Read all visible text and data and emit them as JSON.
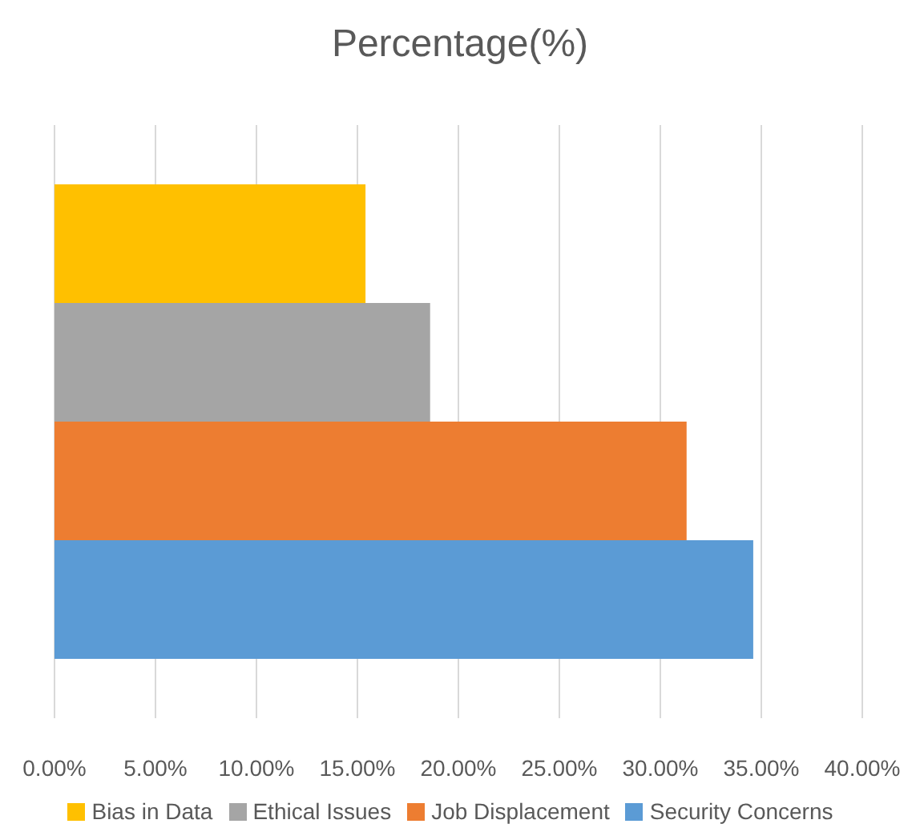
{
  "chart_data": {
    "type": "bar",
    "orientation": "horizontal",
    "title": "Percentage(%)",
    "categories": [
      null
    ],
    "series": [
      {
        "name": "Bias in Data",
        "color": "#ffc000",
        "values": [
          15.4
        ]
      },
      {
        "name": "Ethical Issues",
        "color": "#a5a5a5",
        "values": [
          18.6
        ]
      },
      {
        "name": "Job Displacement",
        "color": "#ed7d31",
        "values": [
          31.3
        ]
      },
      {
        "name": "Security Concerns",
        "color": "#5b9bd5",
        "values": [
          34.6
        ]
      }
    ],
    "xlim": [
      0,
      40
    ],
    "xticks": [
      {
        "value": 0,
        "label": "0.00%"
      },
      {
        "value": 5,
        "label": "5.00%"
      },
      {
        "value": 10,
        "label": "10.00%"
      },
      {
        "value": 15,
        "label": "15.00%"
      },
      {
        "value": 20,
        "label": "20.00%"
      },
      {
        "value": 25,
        "label": "25.00%"
      },
      {
        "value": 30,
        "label": "30.00%"
      },
      {
        "value": 35,
        "label": "35.00%"
      },
      {
        "value": 40,
        "label": "40.00%"
      }
    ],
    "grid": "x",
    "legend": "bottom"
  }
}
